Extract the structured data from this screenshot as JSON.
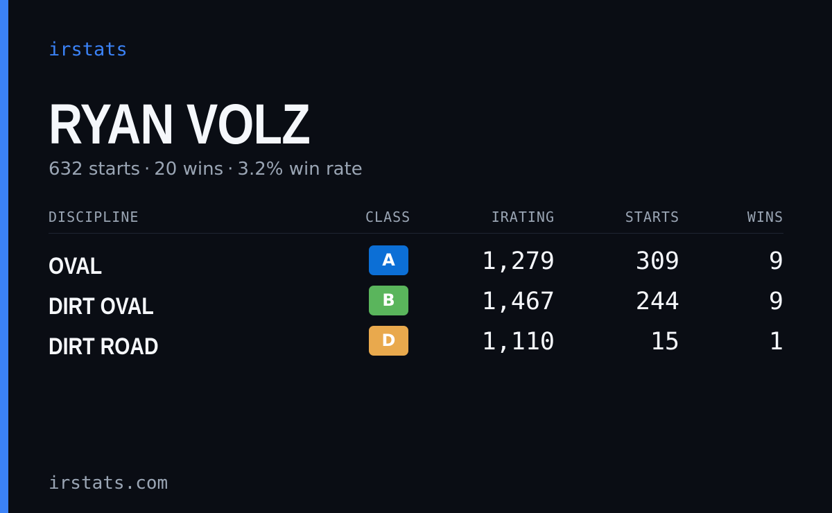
{
  "brand": "irstats",
  "driver": {
    "name": "RYAN VOLZ",
    "summary": {
      "starts": "632 starts",
      "wins": "20 wins",
      "win_rate": "3.2% win rate",
      "separator": "·"
    }
  },
  "table": {
    "headers": {
      "discipline": "DISCIPLINE",
      "class": "CLASS",
      "irating": "IRATING",
      "starts": "STARTS",
      "wins": "WINS"
    },
    "rows": [
      {
        "discipline": "OVAL",
        "class": "A",
        "class_color": "#0c6fd6",
        "irating": "1,279",
        "starts": "309",
        "wins": "9"
      },
      {
        "discipline": "DIRT OVAL",
        "class": "B",
        "class_color": "#5ab55c",
        "irating": "1,467",
        "starts": "244",
        "wins": "9"
      },
      {
        "discipline": "DIRT ROAD",
        "class": "D",
        "class_color": "#e9a94d",
        "irating": "1,110",
        "starts": "15",
        "wins": "1"
      }
    ]
  },
  "footer": "irstats.com",
  "colors": {
    "accent": "#3b82f6",
    "background": "#0a0d14",
    "muted_text": "#9aa5b4"
  }
}
